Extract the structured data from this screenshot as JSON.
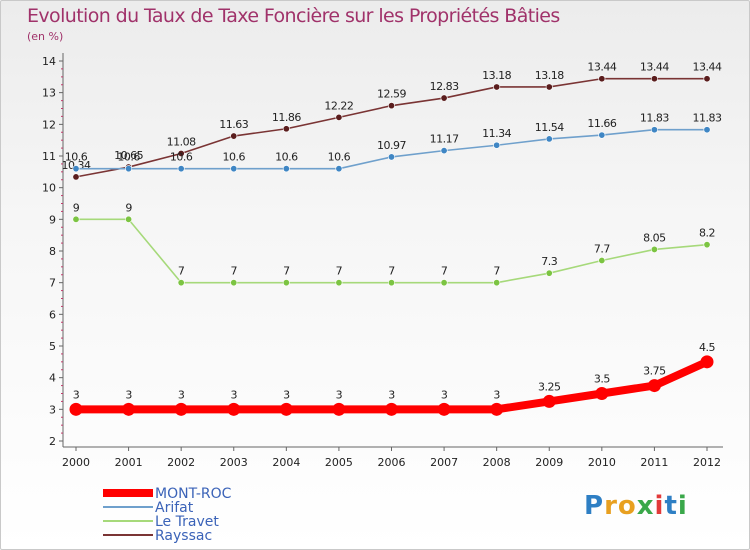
{
  "chart_data": {
    "type": "line",
    "title": "Evolution du Taux de Taxe Foncière sur les Propriétés Bâties",
    "subtitle": "(en %)",
    "categories": [
      "2000",
      "2001",
      "2002",
      "2003",
      "2004",
      "2005",
      "2006",
      "2007",
      "2008",
      "2009",
      "2010",
      "2011",
      "2012"
    ],
    "ylim": [
      2,
      14
    ],
    "yticks": [
      2,
      3,
      4,
      5,
      6,
      7,
      8,
      9,
      10,
      11,
      12,
      13,
      14
    ],
    "grid": false,
    "legend_position": "bottom-left",
    "series": [
      {
        "name": "MONT-ROC",
        "color": "#ff0000",
        "point_color": "#ff0000",
        "values": [
          3,
          3,
          3,
          3,
          3,
          3,
          3,
          3,
          3,
          3.25,
          3.5,
          3.75,
          4.5
        ],
        "labels": [
          "3",
          "3",
          "3",
          "3",
          "3",
          "3",
          "3",
          "3",
          "3",
          "3.25",
          "3.5",
          "3.75",
          "4.5"
        ]
      },
      {
        "name": "Arifat",
        "color": "#6fa0cc",
        "point_color": "#3f86c4",
        "values": [
          10.6,
          10.6,
          10.6,
          10.6,
          10.6,
          10.6,
          10.97,
          11.17,
          11.34,
          11.54,
          11.66,
          11.83,
          11.83
        ],
        "labels": [
          "10.6",
          "10.6",
          "10.6",
          "10.6",
          "10.6",
          "10.6",
          "10.97",
          "11.17",
          "11.34",
          "11.54",
          "11.66",
          "11.83",
          "11.83"
        ]
      },
      {
        "name": "Le Travet",
        "color": "#a6d97a",
        "point_color": "#7cc442",
        "values": [
          9,
          9,
          7,
          7,
          7,
          7,
          7,
          7,
          7,
          7.3,
          7.7,
          8.05,
          8.2
        ],
        "labels": [
          "9",
          "9",
          "7",
          "7",
          "7",
          "7",
          "7",
          "7",
          "7",
          "7.3",
          "7.7",
          "8.05",
          "8.2"
        ]
      },
      {
        "name": "Rayssac",
        "color": "#7a3434",
        "point_color": "#5a1d1d",
        "values": [
          10.34,
          10.65,
          11.08,
          11.63,
          11.86,
          12.22,
          12.59,
          12.83,
          13.18,
          13.18,
          13.44,
          13.44,
          13.44
        ],
        "labels": [
          "10.34",
          "10.65",
          "11.08",
          "11.63",
          "11.86",
          "12.22",
          "12.59",
          "12.83",
          "13.18",
          "13.18",
          "13.44",
          "13.44",
          "13.44"
        ]
      }
    ]
  },
  "logo": {
    "letters": [
      "P",
      "r",
      "o",
      "x",
      "i",
      "t",
      "i"
    ],
    "colors": [
      "#2e7fc4",
      "#e8a020",
      "#e8a020",
      "#3aa84a",
      "#e23a3a",
      "#2e7fc4",
      "#3aa84a"
    ]
  }
}
